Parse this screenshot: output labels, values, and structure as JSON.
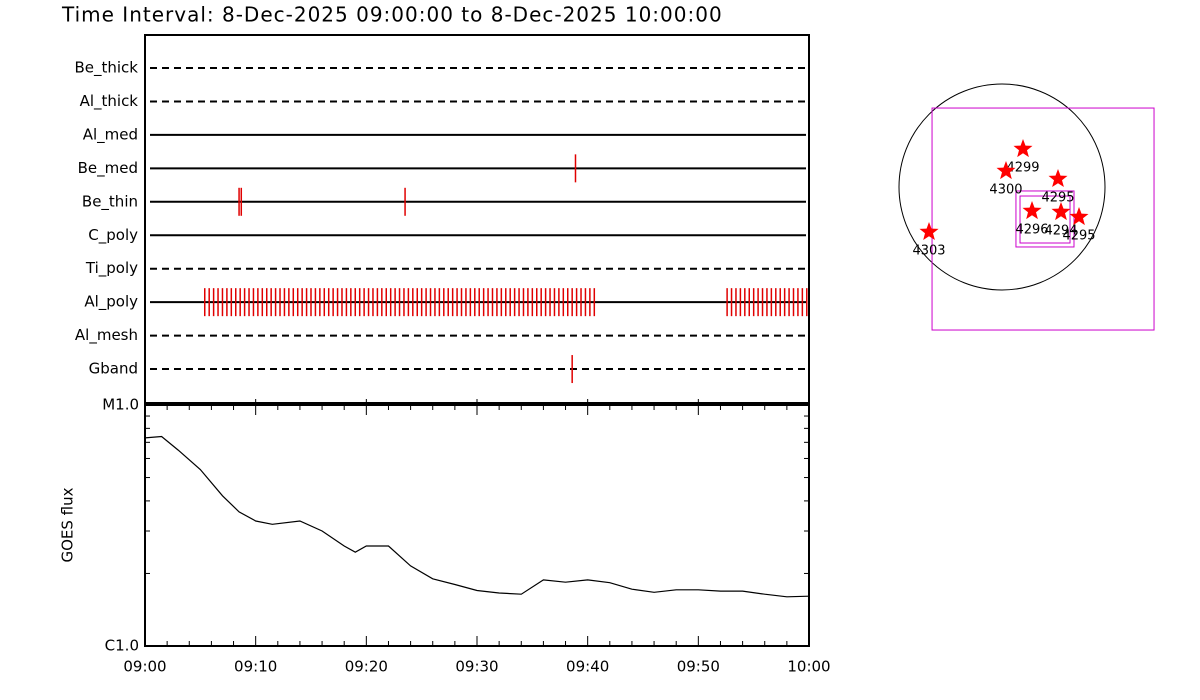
{
  "chart_data": [
    {
      "type": "timeline",
      "title": "Time Interval:  8-Dec-2025 09:00:00 to  8-Dec-2025 10:00:00",
      "xlim": [
        0,
        60
      ],
      "color": "#e00000",
      "rows": [
        {
          "name": "Be_thick",
          "style": "dashed",
          "events": []
        },
        {
          "name": "Al_thick",
          "style": "dashed",
          "events": []
        },
        {
          "name": "Al_med",
          "style": "solid",
          "events": []
        },
        {
          "name": "Be_med",
          "style": "solid",
          "events": [
            38.9
          ]
        },
        {
          "name": "Be_thin",
          "style": "solid",
          "events": [
            8.5,
            8.7,
            23.5
          ]
        },
        {
          "name": "C_poly",
          "style": "solid",
          "events": []
        },
        {
          "name": "Ti_poly",
          "style": "dashed",
          "events": []
        },
        {
          "name": "Al_poly",
          "style": "solid",
          "events": [
            5.4,
            5.8,
            6.2,
            6.6,
            7.0,
            7.4,
            7.8,
            8.2,
            8.6,
            9.0,
            9.4,
            9.8,
            10.2,
            10.6,
            11.0,
            11.4,
            11.8,
            12.2,
            12.6,
            13.0,
            13.4,
            13.8,
            14.2,
            14.6,
            15.0,
            15.4,
            15.8,
            16.2,
            16.6,
            17.0,
            17.4,
            17.8,
            18.2,
            18.6,
            19.0,
            19.4,
            19.8,
            20.2,
            20.6,
            21.0,
            21.4,
            21.8,
            22.2,
            22.6,
            23.0,
            23.4,
            23.8,
            24.2,
            24.6,
            25.0,
            25.4,
            25.8,
            26.2,
            26.6,
            27.0,
            27.4,
            27.8,
            28.2,
            28.6,
            29.0,
            29.4,
            29.8,
            30.2,
            30.6,
            31.0,
            31.4,
            31.8,
            32.2,
            32.6,
            33.0,
            33.4,
            33.8,
            34.2,
            34.6,
            35.0,
            35.4,
            35.8,
            36.2,
            36.6,
            37.0,
            37.4,
            37.8,
            38.2,
            38.6,
            39.0,
            39.4,
            39.8,
            40.2,
            40.6,
            52.6,
            53.0,
            53.4,
            53.8,
            54.2,
            54.6,
            55.0,
            55.4,
            55.8,
            56.2,
            56.6,
            57.0,
            57.4,
            57.8,
            58.2,
            58.6,
            59.0,
            59.4,
            59.8
          ]
        },
        {
          "name": "Al_mesh",
          "style": "dashed",
          "events": []
        },
        {
          "name": "Gband",
          "style": "dashed",
          "events": [
            38.6
          ]
        }
      ]
    },
    {
      "type": "line",
      "y_label": "GOES flux",
      "log_y": true,
      "color": "#000000",
      "xlim": [
        0,
        60
      ],
      "xticks": [
        {
          "value": 0,
          "label": "09:00"
        },
        {
          "value": 10,
          "label": "09:10"
        },
        {
          "value": 20,
          "label": "09:20"
        },
        {
          "value": 30,
          "label": "09:30"
        },
        {
          "value": 40,
          "label": "09:40"
        },
        {
          "value": 50,
          "label": "09:50"
        },
        {
          "value": 60,
          "label": "10:00"
        }
      ],
      "xminorticks": [
        2,
        4,
        6,
        8,
        12,
        14,
        16,
        18,
        22,
        24,
        26,
        28,
        32,
        34,
        36,
        38,
        42,
        44,
        46,
        48,
        52,
        54,
        56,
        58
      ],
      "ylim": [
        1e-06,
        1e-05
      ],
      "yticks": [
        {
          "value": 1e-05,
          "label": "M1.0"
        },
        {
          "value": 1e-06,
          "label": "C1.0"
        }
      ],
      "yminorticks": [
        2e-06,
        3e-06,
        4e-06,
        5e-06,
        6e-06,
        7e-06,
        8e-06,
        9e-06
      ],
      "x": [
        0,
        1.5,
        3,
        5,
        7,
        8.5,
        10,
        11.5,
        14,
        16,
        18,
        19,
        20,
        22,
        24,
        26,
        28,
        30,
        32,
        34,
        36,
        38,
        40,
        42,
        44,
        46,
        48,
        50,
        52,
        54,
        56,
        58,
        60
      ],
      "values": [
        7.3e-06,
        7.4e-06,
        6.5e-06,
        5.4e-06,
        4.2e-06,
        3.6e-06,
        3.3e-06,
        3.2e-06,
        3.3e-06,
        3e-06,
        2.6e-06,
        2.45e-06,
        2.6e-06,
        2.6e-06,
        2.15e-06,
        1.9e-06,
        1.8e-06,
        1.7e-06,
        1.66e-06,
        1.64e-06,
        1.88e-06,
        1.84e-06,
        1.88e-06,
        1.83e-06,
        1.72e-06,
        1.67e-06,
        1.71e-06,
        1.71e-06,
        1.69e-06,
        1.69e-06,
        1.64e-06,
        1.6e-06,
        1.61e-06
      ]
    },
    {
      "type": "map",
      "disk_radius": 960,
      "disk_color": "#000000",
      "fov_color": "#cc00cc",
      "star_color": "#ff0000",
      "fovs": [
        {
          "x0": -652,
          "x1": 1417,
          "y0": -1333,
          "y1": 736
        },
        {
          "x0": 130,
          "x1": 671,
          "y0": -559,
          "y1": -37
        },
        {
          "x0": 168,
          "x1": 634,
          "y0": -522,
          "y1": -84
        }
      ],
      "points": [
        {
          "label": "4299",
          "x": 196,
          "y": 354
        },
        {
          "label": "4300",
          "x": 37,
          "y": 149
        },
        {
          "label": "4295",
          "x": 522,
          "y": 75
        },
        {
          "label": "4296",
          "x": 280,
          "y": -224
        },
        {
          "label": "4294",
          "x": 550,
          "y": -233
        },
        {
          "label": "4295",
          "x": 718,
          "y": -280
        },
        {
          "label": "4303",
          "x": -680,
          "y": -419
        }
      ]
    }
  ]
}
